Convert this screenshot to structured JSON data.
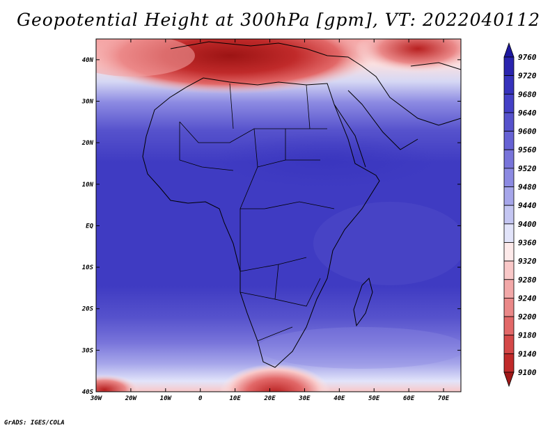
{
  "title": "Geopotential Height at 300hPa [gpm], VT: 2022040112",
  "credit": "GrADS: IGES/COLA",
  "map": {
    "variable": "Geopotential Height",
    "level": "300hPa",
    "units": "gpm",
    "valid_time": "2022040112",
    "lon_range": [
      -30,
      75
    ],
    "lat_range": [
      -40,
      45
    ],
    "lat_ticks": [
      {
        "value": 40,
        "label": "40N"
      },
      {
        "value": 30,
        "label": "30N"
      },
      {
        "value": 20,
        "label": "20N"
      },
      {
        "value": 10,
        "label": "10N"
      },
      {
        "value": 0,
        "label": "EQ"
      },
      {
        "value": -10,
        "label": "10S"
      },
      {
        "value": -20,
        "label": "20S"
      },
      {
        "value": -30,
        "label": "30S"
      },
      {
        "value": -40,
        "label": "40S"
      }
    ],
    "lon_ticks": [
      {
        "value": -30,
        "label": "30W"
      },
      {
        "value": -20,
        "label": "20W"
      },
      {
        "value": -10,
        "label": "10W"
      },
      {
        "value": 0,
        "label": "0"
      },
      {
        "value": 10,
        "label": "10E"
      },
      {
        "value": 20,
        "label": "20E"
      },
      {
        "value": 30,
        "label": "30E"
      },
      {
        "value": 40,
        "label": "40E"
      },
      {
        "value": 50,
        "label": "50E"
      },
      {
        "value": 60,
        "label": "60E"
      },
      {
        "value": 70,
        "label": "70E"
      }
    ]
  },
  "colorbar": {
    "labels": [
      "9760",
      "9720",
      "9680",
      "9640",
      "9600",
      "9560",
      "9520",
      "9480",
      "9440",
      "9400",
      "9360",
      "9320",
      "9280",
      "9240",
      "9200",
      "9180",
      "9140",
      "9100"
    ],
    "colors": [
      "#1e18a0",
      "#2a24ae",
      "#3632bc",
      "#4440c6",
      "#5652cc",
      "#6662d4",
      "#7874da",
      "#8c8ae2",
      "#a6a6ea",
      "#c4c6f2",
      "#e2e4fa",
      "#fdeaea",
      "#f9c8c8",
      "#f2a8a8",
      "#ea8888",
      "#e26868",
      "#d44848",
      "#c02a2a",
      "#a01818"
    ]
  }
}
